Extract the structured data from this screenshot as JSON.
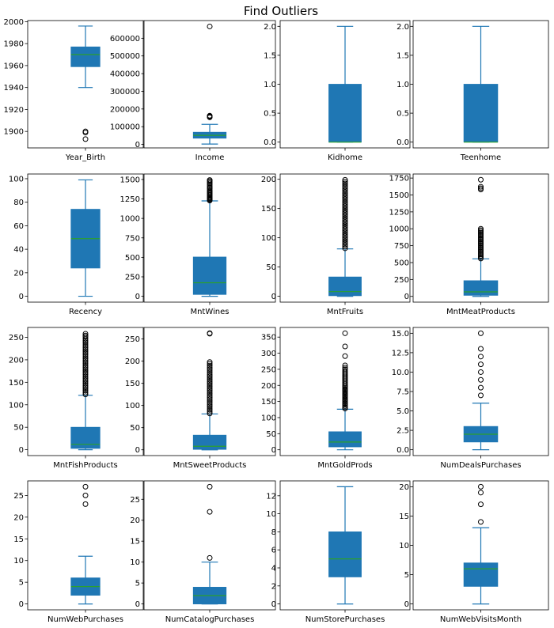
{
  "figure_title": "Find Outliers",
  "colors": {
    "box": "#1f77b4",
    "median": "#2ca02c",
    "whisker": "#1f77b4",
    "flier": "#000000"
  },
  "chart_data": [
    {
      "type": "box",
      "label": "Year_Birth",
      "ylim": [
        1885,
        2001
      ],
      "ticks": [
        1900,
        1920,
        1940,
        1960,
        1980,
        2000
      ],
      "box": {
        "q1": 1959,
        "median": 1970,
        "q3": 1977,
        "whislo": 1940,
        "whishi": 1996
      },
      "fliers": [
        1893,
        1899,
        1900
      ]
    },
    {
      "type": "box",
      "label": "Income",
      "ylim": [
        -20000,
        700000
      ],
      "ticks": [
        0,
        100000,
        200000,
        300000,
        400000,
        500000,
        600000
      ],
      "box": {
        "q1": 35000,
        "median": 51000,
        "q3": 68500,
        "whislo": 1730,
        "whishi": 113000
      },
      "fliers": [
        153000,
        156000,
        157000,
        158000,
        160000,
        162000,
        666666
      ]
    },
    {
      "type": "box",
      "label": "Kidhome",
      "ylim": [
        -0.1,
        2.1
      ],
      "ticks": [
        "0.0",
        "0.5",
        "1.0",
        "1.5",
        "2.0"
      ],
      "box": {
        "q1": 0,
        "median": 0,
        "q3": 1,
        "whislo": 0,
        "whishi": 2
      },
      "fliers": []
    },
    {
      "type": "box",
      "label": "Teenhome",
      "ylim": [
        -0.1,
        2.1
      ],
      "ticks": [
        "0.0",
        "0.5",
        "1.0",
        "1.5",
        "2.0"
      ],
      "box": {
        "q1": 0,
        "median": 0,
        "q3": 1,
        "whislo": 0,
        "whishi": 2
      },
      "fliers": []
    },
    {
      "type": "box",
      "label": "Recency",
      "ylim": [
        -5,
        104
      ],
      "ticks": [
        0,
        20,
        40,
        60,
        80,
        100
      ],
      "box": {
        "q1": 24,
        "median": 49,
        "q3": 74,
        "whislo": 0,
        "whishi": 99
      },
      "fliers": []
    },
    {
      "type": "box",
      "label": "MntWines",
      "ylim": [
        -75,
        1570
      ],
      "ticks": [
        0,
        250,
        500,
        750,
        1000,
        1250,
        1500
      ],
      "box": {
        "q1": 24,
        "median": 174,
        "q3": 504,
        "whislo": 0,
        "whishi": 1225
      },
      "fliers": [
        1230,
        1240,
        1250,
        1260,
        1270,
        1285,
        1300,
        1315,
        1330,
        1345,
        1360,
        1380,
        1395,
        1410,
        1430,
        1450,
        1465,
        1480,
        1493
      ]
    },
    {
      "type": "box",
      "label": "MntFruits",
      "ylim": [
        -10,
        209
      ],
      "ticks": [
        0,
        50,
        100,
        150,
        200
      ],
      "box": {
        "q1": 1,
        "median": 8,
        "q3": 33,
        "whislo": 0,
        "whishi": 81
      },
      "fliers": [
        82,
        85,
        88,
        91,
        94,
        97,
        100,
        103,
        106,
        109,
        112,
        115,
        118,
        121,
        124,
        127,
        130,
        133,
        136,
        139,
        142,
        145,
        148,
        151,
        154,
        157,
        160,
        163,
        166,
        169,
        172,
        175,
        178,
        181,
        184,
        187,
        190,
        193,
        196,
        199
      ]
    },
    {
      "type": "box",
      "label": "MntMeatProducts",
      "ylim": [
        -85,
        1810
      ],
      "ticks": [
        0,
        250,
        500,
        750,
        1000,
        1250,
        1500,
        1750
      ],
      "box": {
        "q1": 16,
        "median": 67,
        "q3": 232,
        "whislo": 0,
        "whishi": 556
      },
      "fliers": [
        560,
        580,
        600,
        620,
        640,
        660,
        680,
        700,
        720,
        740,
        760,
        780,
        800,
        820,
        840,
        860,
        880,
        900,
        920,
        940,
        960,
        980,
        1000,
        1580,
        1600,
        1622,
        1725
      ]
    },
    {
      "type": "box",
      "label": "MntFishProducts",
      "ylim": [
        -13,
        272
      ],
      "ticks": [
        0,
        50,
        100,
        150,
        200,
        250
      ],
      "box": {
        "q1": 3,
        "median": 12,
        "q3": 50,
        "whislo": 0,
        "whishi": 121
      },
      "fliers": [
        123,
        127,
        131,
        135,
        139,
        143,
        147,
        151,
        155,
        159,
        163,
        167,
        171,
        175,
        179,
        183,
        187,
        191,
        195,
        199,
        203,
        207,
        211,
        215,
        219,
        223,
        227,
        231,
        235,
        239,
        243,
        247,
        251,
        254,
        258
      ]
    },
    {
      "type": "box",
      "label": "MntSweetProducts",
      "ylim": [
        -13,
        276
      ],
      "ticks": [
        0,
        50,
        100,
        150,
        200,
        250
      ],
      "box": {
        "q1": 1,
        "median": 8,
        "q3": 33,
        "whislo": 0,
        "whishi": 81
      },
      "fliers": [
        82,
        86,
        90,
        94,
        98,
        102,
        106,
        110,
        114,
        118,
        122,
        126,
        130,
        134,
        138,
        142,
        146,
        150,
        154,
        158,
        162,
        166,
        170,
        174,
        178,
        182,
        186,
        190,
        194,
        198,
        262,
        263
      ]
    },
    {
      "type": "box",
      "label": "MntGoldProds",
      "ylim": [
        -18,
        380
      ],
      "ticks": [
        0,
        50,
        100,
        150,
        200,
        250,
        300,
        350
      ],
      "box": {
        "q1": 9,
        "median": 24,
        "q3": 56,
        "whislo": 0,
        "whishi": 126
      },
      "fliers": [
        128,
        132,
        136,
        140,
        144,
        148,
        152,
        156,
        160,
        164,
        168,
        172,
        176,
        180,
        184,
        188,
        192,
        196,
        200,
        205,
        210,
        215,
        220,
        225,
        230,
        235,
        240,
        245,
        250,
        255,
        262,
        291,
        321,
        362
      ]
    },
    {
      "type": "box",
      "label": "NumDealsPurchases",
      "ylim": [
        -0.75,
        15.75
      ],
      "ticks": [
        "0.0",
        "2.5",
        "5.0",
        "7.5",
        "10.0",
        "12.5",
        "15.0"
      ],
      "box": {
        "q1": 1,
        "median": 2,
        "q3": 3,
        "whislo": 0,
        "whishi": 6
      },
      "fliers": [
        7,
        8,
        9,
        10,
        11,
        12,
        13,
        15
      ]
    },
    {
      "type": "box",
      "label": "NumWebPurchases",
      "ylim": [
        -1.35,
        28.35
      ],
      "ticks": [
        0,
        5,
        10,
        15,
        20,
        25
      ],
      "box": {
        "q1": 2,
        "median": 4,
        "q3": 6,
        "whislo": 0,
        "whishi": 11
      },
      "fliers": [
        23,
        25,
        27
      ]
    },
    {
      "type": "box",
      "label": "NumCatalogPurchases",
      "ylim": [
        -1.4,
        29.4
      ],
      "ticks": [
        0,
        5,
        10,
        15,
        20,
        25
      ],
      "box": {
        "q1": 0,
        "median": 2,
        "q3": 4,
        "whislo": 0,
        "whishi": 10
      },
      "fliers": [
        11,
        22,
        28
      ]
    },
    {
      "type": "box",
      "label": "NumStorePurchases",
      "ylim": [
        -0.65,
        13.65
      ],
      "ticks": [
        0,
        2,
        4,
        6,
        8,
        10,
        12
      ],
      "box": {
        "q1": 3,
        "median": 5,
        "q3": 8,
        "whislo": 0,
        "whishi": 13
      },
      "fliers": []
    },
    {
      "type": "box",
      "label": "NumWebVisitsMonth",
      "ylim": [
        -1,
        21
      ],
      "ticks": [
        0,
        5,
        10,
        15,
        20
      ],
      "box": {
        "q1": 3,
        "median": 6,
        "q3": 7,
        "whislo": 0,
        "whishi": 13
      },
      "fliers": [
        14,
        17,
        19,
        20
      ]
    }
  ]
}
